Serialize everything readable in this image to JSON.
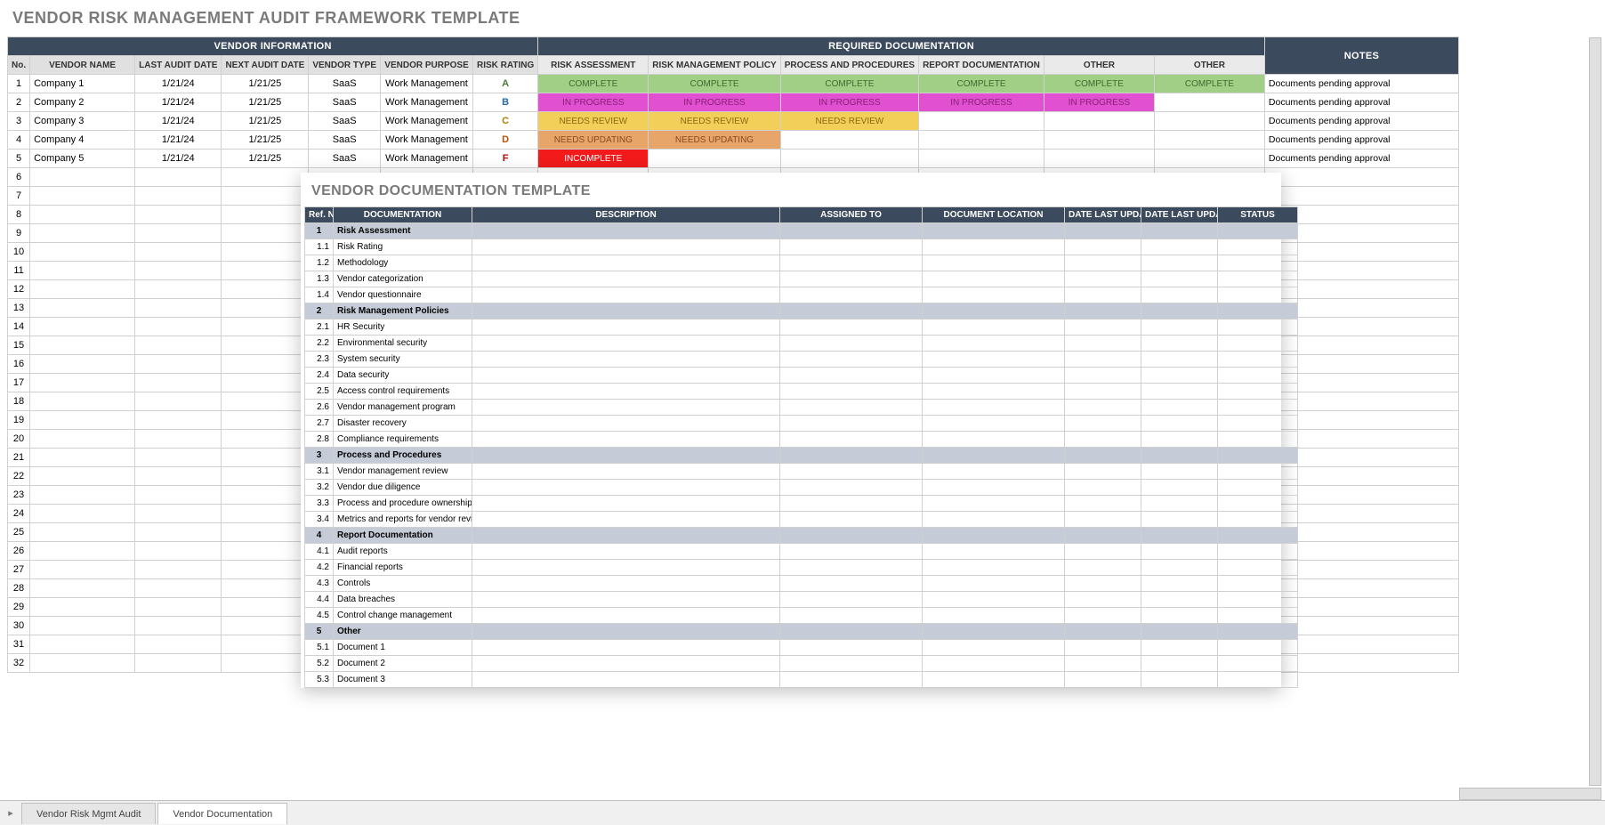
{
  "main": {
    "title": "VENDOR RISK MANAGEMENT AUDIT FRAMEWORK TEMPLATE",
    "sections": {
      "vendor_info": "VENDOR INFORMATION",
      "req_doc": "REQUIRED DOCUMENTATION",
      "notes": "NOTES"
    },
    "headers": {
      "no": "No.",
      "vendor_name": "VENDOR NAME",
      "last_audit": "LAST AUDIT DATE",
      "next_audit": "NEXT AUDIT DATE",
      "vendor_type": "VENDOR TYPE",
      "vendor_purpose": "VENDOR PURPOSE",
      "risk_rating": "RISK RATING",
      "doc": [
        "RISK ASSESSMENT",
        "RISK MANAGEMENT POLICY",
        "PROCESS AND PROCEDURES",
        "REPORT DOCUMENTATION",
        "OTHER",
        "OTHER"
      ]
    },
    "status_styles": {
      "COMPLETE": {
        "bg": "#a2cf86",
        "fg": "#3d6b2e"
      },
      "IN PROGRESS": {
        "bg": "#e050d0",
        "fg": "#8a1f7a"
      },
      "NEEDS REVIEW": {
        "bg": "#f2cf58",
        "fg": "#8a6a10"
      },
      "NEEDS UPDATING": {
        "bg": "#e8a56a",
        "fg": "#8a4a20"
      },
      "INCOMPLETE": {
        "bg": "#f21a1a",
        "fg": "#ffffff"
      }
    },
    "rows": [
      {
        "no": 1,
        "name": "Company 1",
        "last": "1/21/24",
        "next": "1/21/25",
        "type": "SaaS",
        "purpose": "Work Management",
        "risk": "A",
        "riskcls": "risk-a",
        "docs": [
          "COMPLETE",
          "COMPLETE",
          "COMPLETE",
          "COMPLETE",
          "COMPLETE",
          "COMPLETE"
        ],
        "notes": "Documents pending approval"
      },
      {
        "no": 2,
        "name": "Company 2",
        "last": "1/21/24",
        "next": "1/21/25",
        "type": "SaaS",
        "purpose": "Work Management",
        "risk": "B",
        "riskcls": "risk-b",
        "docs": [
          "IN PROGRESS",
          "IN PROGRESS",
          "IN PROGRESS",
          "IN PROGRESS",
          "IN PROGRESS",
          ""
        ],
        "notes": "Documents pending approval"
      },
      {
        "no": 3,
        "name": "Company 3",
        "last": "1/21/24",
        "next": "1/21/25",
        "type": "SaaS",
        "purpose": "Work Management",
        "risk": "C",
        "riskcls": "risk-c",
        "docs": [
          "NEEDS REVIEW",
          "NEEDS REVIEW",
          "NEEDS REVIEW",
          "",
          "",
          ""
        ],
        "notes": "Documents pending approval"
      },
      {
        "no": 4,
        "name": "Company 4",
        "last": "1/21/24",
        "next": "1/21/25",
        "type": "SaaS",
        "purpose": "Work Management",
        "risk": "D",
        "riskcls": "risk-d",
        "docs": [
          "NEEDS UPDATING",
          "NEEDS UPDATING",
          "",
          "",
          "",
          ""
        ],
        "notes": "Documents pending approval"
      },
      {
        "no": 5,
        "name": "Company 5",
        "last": "1/21/24",
        "next": "1/21/25",
        "type": "SaaS",
        "purpose": "Work Management",
        "risk": "F",
        "riskcls": "risk-f",
        "docs": [
          "INCOMPLETE",
          "",
          "",
          "",
          "",
          ""
        ],
        "notes": "Documents pending approval"
      }
    ],
    "blank_start": 6,
    "blank_end": 32
  },
  "overlay": {
    "title": "VENDOR DOCUMENTATION TEMPLATE",
    "headers": {
      "ref": "Ref. No.",
      "doc": "DOCUMENTATION",
      "desc": "DESCRIPTION",
      "assigned": "ASSIGNED TO",
      "loc": "DOCUMENT LOCATION",
      "upd1": "DATE LAST UPDATED",
      "upd2": "DATE LAST UPDATED",
      "status": "STATUS"
    },
    "rows": [
      {
        "ref": "1",
        "name": "Risk Assessment",
        "group": true
      },
      {
        "ref": "1.1",
        "name": "Risk Rating"
      },
      {
        "ref": "1.2",
        "name": "Methodology"
      },
      {
        "ref": "1.3",
        "name": "Vendor categorization"
      },
      {
        "ref": "1.4",
        "name": "Vendor questionnaire"
      },
      {
        "ref": "2",
        "name": "Risk Management Policies",
        "group": true
      },
      {
        "ref": "2.1",
        "name": "HR Security"
      },
      {
        "ref": "2.2",
        "name": "Environmental security"
      },
      {
        "ref": "2.3",
        "name": "System security"
      },
      {
        "ref": "2.4",
        "name": "Data security"
      },
      {
        "ref": "2.5",
        "name": "Access control requirements"
      },
      {
        "ref": "2.6",
        "name": "Vendor management program"
      },
      {
        "ref": "2.7",
        "name": "Disaster recovery"
      },
      {
        "ref": "2.8",
        "name": "Compliance requirements"
      },
      {
        "ref": "3",
        "name": "Process and Procedures",
        "group": true
      },
      {
        "ref": "3.1",
        "name": "Vendor management review"
      },
      {
        "ref": "3.2",
        "name": "Vendor due diligence"
      },
      {
        "ref": "3.3",
        "name": "Process and procedure ownership"
      },
      {
        "ref": "3.4",
        "name": "Metrics and reports for vendor review"
      },
      {
        "ref": "4",
        "name": "Report Documentation",
        "group": true
      },
      {
        "ref": "4.1",
        "name": "Audit reports"
      },
      {
        "ref": "4.2",
        "name": "Financial reports"
      },
      {
        "ref": "4.3",
        "name": "Controls"
      },
      {
        "ref": "4.4",
        "name": "Data breaches"
      },
      {
        "ref": "4.5",
        "name": "Control change management"
      },
      {
        "ref": "5",
        "name": "Other",
        "group": true
      },
      {
        "ref": "5.1",
        "name": "Document 1"
      },
      {
        "ref": "5.2",
        "name": "Document 2"
      },
      {
        "ref": "5.3",
        "name": "Document 3"
      }
    ]
  },
  "tabs": {
    "tab1": "Vendor Risk Mgmt Audit",
    "tab2": "Vendor Documentation"
  }
}
